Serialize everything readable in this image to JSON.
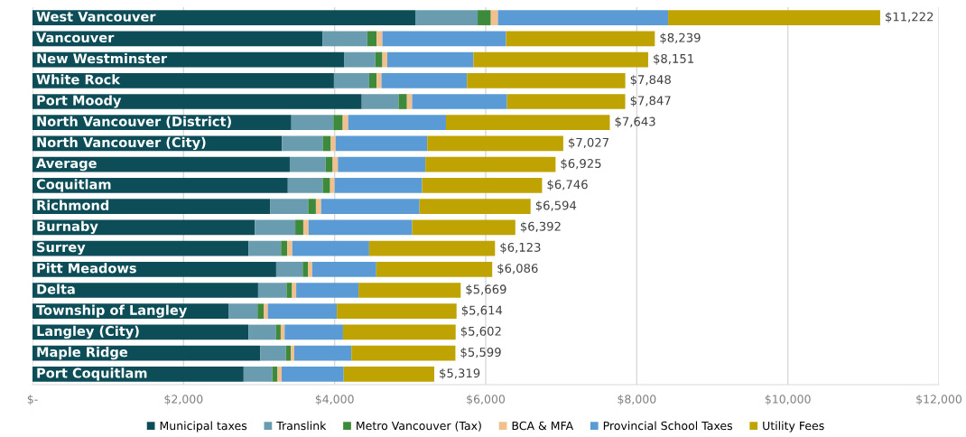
{
  "chart_data": {
    "type": "bar",
    "orientation": "horizontal",
    "stacked": true,
    "categories": [
      "West Vancouver",
      "Vancouver",
      "New Westminster",
      "White Rock",
      "Port Moody",
      "North Vancouver (District)",
      "North Vancouver (City)",
      "Average",
      "Coquitlam",
      "Richmond",
      "Burnaby",
      "Surrey",
      "Pitt Meadows",
      "Delta",
      "Township of Langley",
      "Langley (City)",
      "Maple Ridge",
      "Port Coquitlam"
    ],
    "series": [
      {
        "name": "Municipal taxes",
        "color": "#0d4d57",
        "values": [
          5068,
          3838,
          4124,
          3991,
          4359,
          3427,
          3303,
          3406,
          3380,
          3145,
          2944,
          2859,
          3226,
          2987,
          2594,
          2859,
          3017,
          2795
        ]
      },
      {
        "name": "Translink",
        "color": "#6a9caf",
        "values": [
          825,
          594,
          414,
          466,
          487,
          556,
          539,
          474,
          462,
          505,
          535,
          431,
          351,
          376,
          385,
          367,
          338,
          380
        ]
      },
      {
        "name": "Metro Vancouver (Tax)",
        "color": "#3e8a3c",
        "values": [
          175,
          124,
          94,
          99,
          111,
          124,
          107,
          94,
          98,
          102,
          106,
          82,
          73,
          73,
          81,
          60,
          64,
          69
        ]
      },
      {
        "name": "BCA & MFA",
        "color": "#f2c08c",
        "values": [
          94,
          76,
          65,
          64,
          69,
          72,
          64,
          69,
          60,
          69,
          69,
          68,
          55,
          55,
          55,
          52,
          47,
          55
        ]
      },
      {
        "name": "Provincial School Taxes",
        "color": "#5b9bd5",
        "values": [
          2253,
          1637,
          1141,
          1132,
          1256,
          1295,
          1213,
          1158,
          1158,
          1303,
          1372,
          1017,
          846,
          825,
          915,
          773,
          756,
          821
        ]
      },
      {
        "name": "Utility Fees",
        "color": "#bfa302",
        "values": [
          2807,
          1970,
          2313,
          2096,
          1565,
          2169,
          1801,
          1724,
          1588,
          1470,
          1366,
          1666,
          1535,
          1353,
          1584,
          1491,
          1377,
          1199
        ]
      }
    ],
    "totals": [
      "$11,222",
      "$8,239",
      "$8,151",
      "$7,848",
      "$7,847",
      "$7,643",
      "$7,027",
      "$6,925",
      "$6,746",
      "$6,594",
      "$6,392",
      "$6,123",
      "$6,086",
      "$5,669",
      "$5,614",
      "$5,602",
      "$5,599",
      "$5,319"
    ],
    "xlim": [
      0,
      12000
    ],
    "xticks": [
      {
        "value": 0,
        "label": "$-"
      },
      {
        "value": 2000,
        "label": "$2,000"
      },
      {
        "value": 4000,
        "label": "$4,000"
      },
      {
        "value": 6000,
        "label": "$6,000"
      },
      {
        "value": 8000,
        "label": "$8,000"
      },
      {
        "value": 10000,
        "label": "$10,000"
      },
      {
        "value": 12000,
        "label": "$12,000"
      }
    ],
    "grid": "x",
    "legend": "bottom"
  }
}
